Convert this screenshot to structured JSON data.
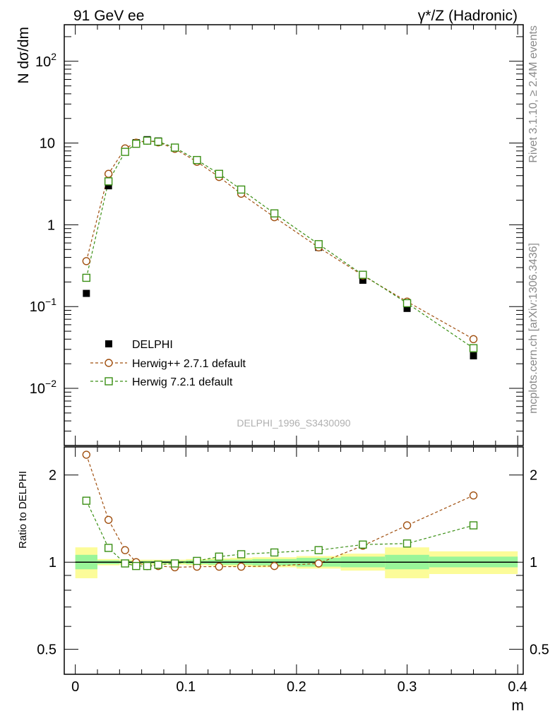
{
  "header": {
    "left": "91 GeV ee",
    "right": "γ*/Z (Hadronic)"
  },
  "side_labels": {
    "rivet": "Rivet 3.1.10, ≥ 2.4M events",
    "mcplots": "mcplots.cern.ch [arXiv:1306.3436]"
  },
  "watermark": "DELPHI_1996_S3430090",
  "colors": {
    "data": "#000000",
    "herwigpp": "#a04f0f",
    "herwig7": "#3a8f14",
    "band_inner": "#99f599",
    "band_outer": "#fcfc99"
  },
  "chart_data": [
    {
      "type": "scatter",
      "ylabel": "N dσ/dm",
      "yscale": "log",
      "ylim": [
        0.002,
        280
      ],
      "xlim": [
        -0.01,
        0.405
      ],
      "ytick_labels": [
        {
          "value": 0.01,
          "base": "10",
          "exp": "−2"
        },
        {
          "value": 0.1,
          "base": "10",
          "exp": "−1"
        },
        {
          "value": 1,
          "base": "1",
          "exp": ""
        },
        {
          "value": 10,
          "base": "10",
          "exp": ""
        },
        {
          "value": 100,
          "base": "10",
          "exp": "2"
        }
      ],
      "legend": {
        "position": "lower-left",
        "entries": [
          "DELPHI",
          "Herwig++ 2.7.1 default",
          "Herwig 7.2.1 default"
        ]
      },
      "series": [
        {
          "name": "DELPHI",
          "marker": "filled-square",
          "x": [
            0.01,
            0.03,
            0.045,
            0.055,
            0.065,
            0.075,
            0.09,
            0.11,
            0.13,
            0.15,
            0.18,
            0.22,
            0.26,
            0.3,
            0.36
          ],
          "y": [
            0.145,
            3.0,
            7.9,
            10.1,
            11.0,
            10.6,
            8.8,
            6.1,
            4.0,
            2.5,
            1.28,
            0.53,
            0.21,
            0.095,
            0.025
          ]
        },
        {
          "name": "Herwig++ 2.7.1 default",
          "marker": "open-circle",
          "x": [
            0.01,
            0.03,
            0.045,
            0.055,
            0.065,
            0.075,
            0.09,
            0.11,
            0.13,
            0.15,
            0.18,
            0.22,
            0.26,
            0.3,
            0.36
          ],
          "y": [
            0.36,
            4.2,
            8.6,
            10.1,
            10.7,
            10.2,
            8.5,
            5.9,
            3.85,
            2.4,
            1.24,
            0.53,
            0.24,
            0.115,
            0.04
          ]
        },
        {
          "name": "Herwig 7.2.1 default",
          "marker": "open-square",
          "x": [
            0.01,
            0.03,
            0.045,
            0.055,
            0.065,
            0.075,
            0.09,
            0.11,
            0.13,
            0.15,
            0.18,
            0.22,
            0.26,
            0.3,
            0.36
          ],
          "y": [
            0.225,
            3.4,
            7.8,
            9.8,
            10.7,
            10.4,
            8.8,
            6.2,
            4.2,
            2.7,
            1.38,
            0.58,
            0.245,
            0.11,
            0.031
          ]
        }
      ]
    },
    {
      "type": "line",
      "ylabel": "Ratio to DELPHI",
      "yscale": "log",
      "ylim": [
        0.41,
        2.5
      ],
      "xlim": [
        -0.01,
        0.405
      ],
      "xlabel": "m",
      "xtick_labels": [
        {
          "value": 0,
          "label": "0"
        },
        {
          "value": 0.1,
          "label": "0.1"
        },
        {
          "value": 0.2,
          "label": "0.2"
        },
        {
          "value": 0.3,
          "label": "0.3"
        },
        {
          "value": 0.4,
          "label": "0.4"
        }
      ],
      "ytick_labels": [
        {
          "value": 0.5,
          "label": "0.5"
        },
        {
          "value": 1,
          "label": "1"
        },
        {
          "value": 2,
          "label": "2"
        }
      ],
      "bands": {
        "bins": [
          [
            0.0,
            0.02
          ],
          [
            0.02,
            0.04
          ],
          [
            0.04,
            0.05
          ],
          [
            0.05,
            0.06
          ],
          [
            0.06,
            0.07
          ],
          [
            0.07,
            0.08
          ],
          [
            0.08,
            0.1
          ],
          [
            0.1,
            0.12
          ],
          [
            0.12,
            0.14
          ],
          [
            0.14,
            0.16
          ],
          [
            0.16,
            0.2
          ],
          [
            0.2,
            0.24
          ],
          [
            0.24,
            0.28
          ],
          [
            0.28,
            0.32
          ],
          [
            0.32,
            0.4
          ]
        ],
        "inner_lo": [
          0.945,
          0.985,
          0.99,
          0.99,
          0.99,
          0.99,
          0.99,
          0.985,
          0.98,
          0.98,
          0.975,
          0.965,
          0.96,
          0.945,
          0.96
        ],
        "inner_hi": [
          1.06,
          1.015,
          1.01,
          1.01,
          1.01,
          1.01,
          1.01,
          1.015,
          1.02,
          1.02,
          1.025,
          1.035,
          1.045,
          1.06,
          1.045
        ],
        "outer_lo": [
          0.88,
          0.975,
          0.98,
          0.98,
          0.98,
          0.98,
          0.98,
          0.975,
          0.97,
          0.965,
          0.96,
          0.95,
          0.935,
          0.88,
          0.91
        ],
        "outer_hi": [
          1.125,
          1.025,
          1.02,
          1.02,
          1.02,
          1.02,
          1.02,
          1.025,
          1.03,
          1.035,
          1.04,
          1.05,
          1.07,
          1.125,
          1.09
        ]
      },
      "series": [
        {
          "name": "Herwig++ 2.7.1 default",
          "marker": "open-circle",
          "x": [
            0.01,
            0.03,
            0.045,
            0.055,
            0.065,
            0.075,
            0.09,
            0.11,
            0.13,
            0.15,
            0.18,
            0.22,
            0.26,
            0.3,
            0.36
          ],
          "y": [
            2.35,
            1.4,
            1.1,
            1.0,
            0.97,
            0.97,
            0.96,
            0.965,
            0.965,
            0.965,
            0.97,
            0.99,
            1.14,
            1.34,
            1.7
          ]
        },
        {
          "name": "Herwig 7.2.1 default",
          "marker": "open-square",
          "x": [
            0.01,
            0.03,
            0.045,
            0.055,
            0.065,
            0.075,
            0.09,
            0.11,
            0.13,
            0.15,
            0.18,
            0.22,
            0.26,
            0.3,
            0.36
          ],
          "y": [
            1.63,
            1.12,
            0.99,
            0.97,
            0.97,
            0.98,
            0.99,
            1.01,
            1.045,
            1.065,
            1.08,
            1.1,
            1.15,
            1.16,
            1.34
          ]
        }
      ]
    }
  ]
}
